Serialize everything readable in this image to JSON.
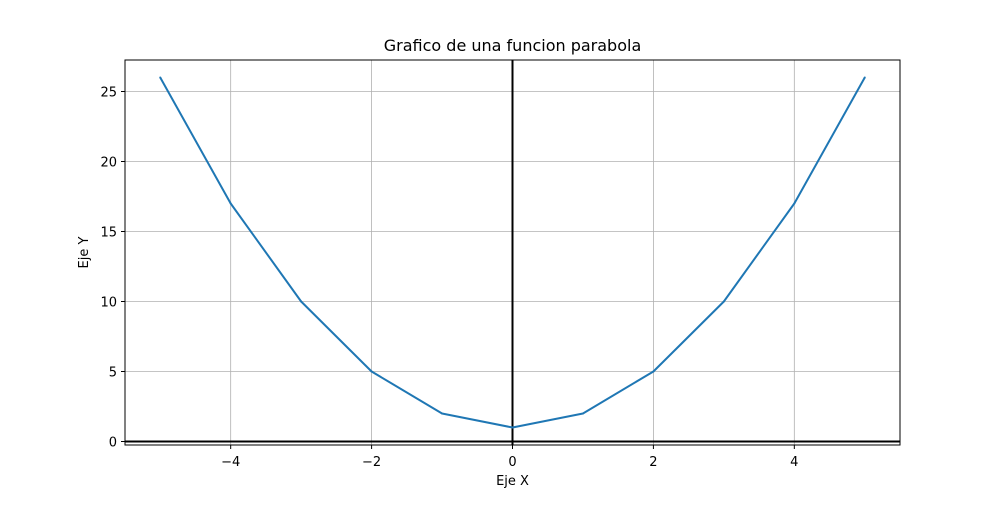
{
  "chart_data": {
    "type": "line",
    "title": "Grafico de una funcion parabola",
    "xlabel": "Eje X",
    "ylabel": "Eje Y",
    "xlim": [
      -5.5,
      5.5
    ],
    "ylim": [
      -0.25,
      27.25
    ],
    "grid": true,
    "x_ticks": [
      -4,
      -2,
      0,
      2,
      4
    ],
    "x_tick_labels": [
      "−4",
      "−2",
      "0",
      "2",
      "4"
    ],
    "y_ticks": [
      0,
      5,
      10,
      15,
      20,
      25
    ],
    "y_tick_labels": [
      "0",
      "5",
      "10",
      "15",
      "20",
      "25"
    ],
    "reference_lines": {
      "x": 0,
      "y": 0,
      "color": "#000000"
    },
    "series": [
      {
        "color": "#1f77b4",
        "x": [
          -5,
          -4,
          -3,
          -2,
          -1,
          0,
          1,
          2,
          3,
          4,
          5
        ],
        "y": [
          26,
          17,
          10,
          5,
          2,
          1,
          2,
          5,
          10,
          17,
          26
        ]
      }
    ]
  }
}
